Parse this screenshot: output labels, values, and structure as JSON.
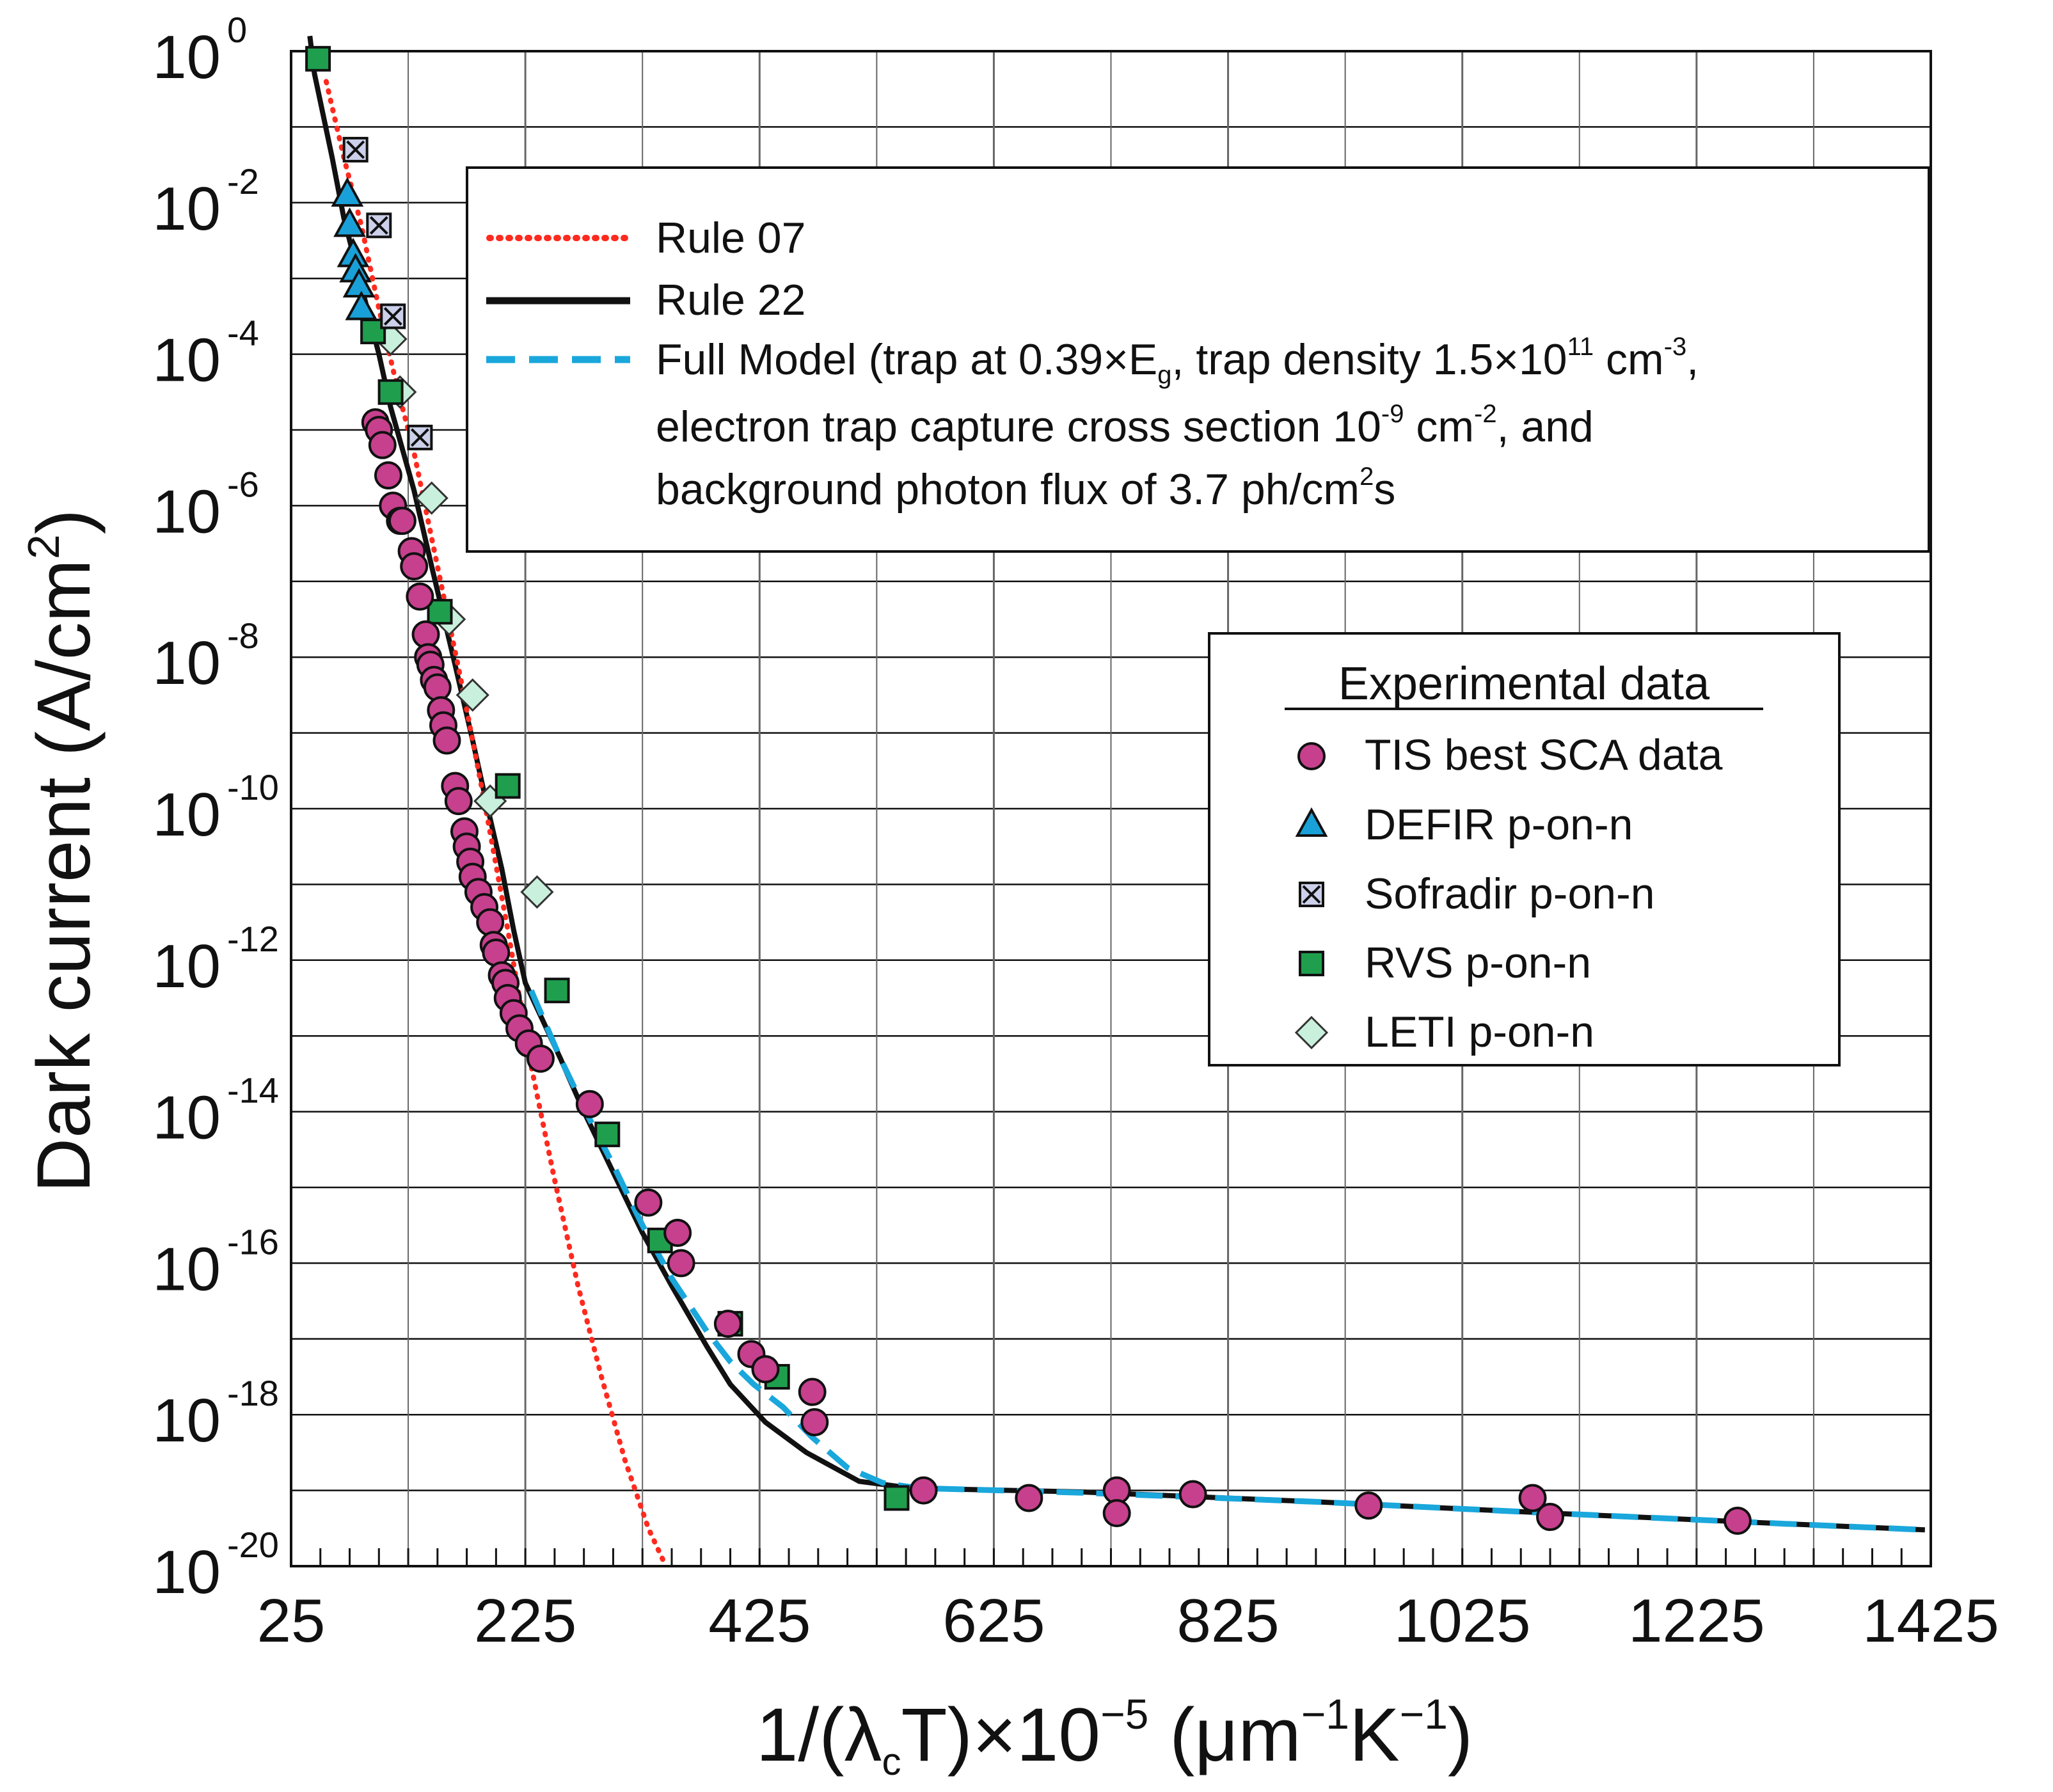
{
  "chart_data": {
    "type": "scatter",
    "xlabel": "1/(λcT)×10⁻⁵ (μm⁻¹K⁻¹)",
    "xlabel_parts": {
      "pre": "1/(λ",
      "sub": "c",
      "mid": "T)×10",
      "sup1": "−5",
      "post1": " (μm",
      "sup2": "−1",
      "post2": "K",
      "sup3": "−1",
      "end": ")"
    },
    "ylabel": "Dark current (A/cm²)",
    "ylabel_parts": {
      "pre": "Dark current (A/cm",
      "sup": "2",
      "post": ")"
    },
    "xlim": [
      25,
      1425
    ],
    "ylim_log10": [
      -20,
      0
    ],
    "x_ticks": [
      "25",
      "225",
      "425",
      "625",
      "825",
      "1025",
      "1225",
      "1425"
    ],
    "y_ticks": [
      {
        "base": "10",
        "exp": "0"
      },
      {
        "base": "10",
        "exp": "-2"
      },
      {
        "base": "10",
        "exp": "-4"
      },
      {
        "base": "10",
        "exp": "-6"
      },
      {
        "base": "10",
        "exp": "-8"
      },
      {
        "base": "10",
        "exp": "-10"
      },
      {
        "base": "10",
        "exp": "-12"
      },
      {
        "base": "10",
        "exp": "-14"
      },
      {
        "base": "10",
        "exp": "-16"
      },
      {
        "base": "10",
        "exp": "-18"
      },
      {
        "base": "10",
        "exp": "-20"
      }
    ],
    "grid": true,
    "model_legend": [
      {
        "label": "Rule 07",
        "style": "dotted",
        "color": "#ff2a1f"
      },
      {
        "label": "Rule 22",
        "style": "solid",
        "color": "#111111"
      },
      {
        "label": "Full Model (trap at 0.39×Eg, trap density 1.5×10¹¹ cm⁻³, electron trap capture cross section 10⁻⁹ cm⁻², and background photon flux of 3.7 ph/cm²s",
        "style": "dashed",
        "color": "#1aa7dc"
      }
    ],
    "model_legend_text": {
      "line3_a": "Full Model (trap at 0.39×E",
      "line3_sub": "g",
      "line3_b": ", trap density 1.5×10",
      "line3_sup1": "11",
      "line3_c": " cm",
      "line3_sup2": "-3",
      "line3_d": ",",
      "line4_a": "electron trap capture cross section 10",
      "line4_sup1": "-9",
      "line4_b": " cm",
      "line4_sup2": "-2",
      "line4_c": ", and",
      "line5_a": "background photon flux of 3.7 ph/cm",
      "line5_sup": "2",
      "line5_b": "s"
    },
    "experimental_legend_title": "Experimental data",
    "series": [
      {
        "name": "Rule 07",
        "kind": "line",
        "style": "dotted",
        "color": "#ff2a1f",
        "x": [
          55,
          70,
          85,
          100,
          115,
          130,
          150,
          170,
          190,
          210,
          230,
          250,
          270,
          290,
          310,
          330,
          345
        ],
        "log10_y": [
          -0.4,
          -1.4,
          -2.3,
          -3.4,
          -4.4,
          -5.3,
          -6.8,
          -8.3,
          -9.9,
          -11.6,
          -13.4,
          -14.9,
          -16.3,
          -17.5,
          -18.6,
          -19.5,
          -20.0
        ]
      },
      {
        "name": "Rule 22",
        "kind": "line",
        "style": "solid",
        "color": "#111111",
        "x": [
          41,
          45,
          60,
          70,
          80,
          100,
          110,
          130,
          145,
          165,
          180,
          190,
          205,
          215,
          225,
          255,
          275,
          300,
          325,
          350,
          380,
          400,
          430,
          465,
          510,
          545,
          580,
          700,
          900,
          1100,
          1300,
          1420
        ],
        "log10_y": [
          0.2,
          -0.3,
          -1.4,
          -2.2,
          -2.8,
          -4.0,
          -4.7,
          -5.8,
          -6.8,
          -8.1,
          -9.1,
          -9.8,
          -10.8,
          -11.6,
          -12.3,
          -13.3,
          -14.0,
          -14.8,
          -15.6,
          -16.3,
          -17.1,
          -17.6,
          -18.1,
          -18.5,
          -18.88,
          -18.95,
          -18.98,
          -19.02,
          -19.15,
          -19.3,
          -19.44,
          -19.52
        ]
      },
      {
        "name": "Full Model",
        "kind": "line",
        "style": "dashed",
        "color": "#1aa7dc",
        "x": [
          230,
          255,
          280,
          300,
          325,
          350,
          380,
          400,
          420,
          445,
          470,
          500,
          530,
          560,
          700,
          900,
          1100,
          1300,
          1420
        ],
        "log10_y": [
          -12.4,
          -13.3,
          -14.1,
          -14.7,
          -15.5,
          -16.2,
          -16.9,
          -17.3,
          -17.6,
          -17.9,
          -18.3,
          -18.7,
          -18.9,
          -18.97,
          -19.03,
          -19.15,
          -19.3,
          -19.44,
          -19.52
        ]
      },
      {
        "name": "TIS best SCA data",
        "kind": "scatter",
        "marker": "circle",
        "color": "#c6408d",
        "x": [
          97,
          100,
          103,
          108,
          112,
          118,
          120,
          128,
          130,
          135,
          140,
          142,
          144,
          147,
          150,
          153,
          155,
          158,
          165,
          168,
          173,
          175,
          178,
          180,
          185,
          190,
          195,
          198,
          200,
          205,
          208,
          210,
          215,
          220,
          228,
          238,
          280,
          330,
          355,
          358,
          398,
          418,
          430,
          470,
          472,
          565,
          655,
          730,
          730,
          795,
          945,
          1085,
          1100,
          1260
        ],
        "log10_y": [
          -4.9,
          -5.0,
          -5.2,
          -5.6,
          -6.0,
          -6.2,
          -6.2,
          -6.6,
          -6.8,
          -7.2,
          -7.7,
          -8.0,
          -8.1,
          -8.3,
          -8.4,
          -8.7,
          -8.9,
          -9.1,
          -9.7,
          -9.9,
          -10.3,
          -10.5,
          -10.7,
          -10.9,
          -11.1,
          -11.3,
          -11.5,
          -11.8,
          -11.9,
          -12.2,
          -12.3,
          -12.5,
          -12.7,
          -12.9,
          -13.1,
          -13.3,
          -13.9,
          -15.2,
          -15.6,
          -16.0,
          -16.8,
          -17.2,
          -17.4,
          -17.7,
          -18.1,
          -19.0,
          -19.1,
          -19.0,
          -19.3,
          -19.05,
          -19.2,
          -19.1,
          -19.35,
          -19.4
        ]
      },
      {
        "name": "DEFIR p-on-n",
        "kind": "scatter",
        "marker": "triangle",
        "color": "#1aa0d8",
        "x": [
          73,
          75,
          78,
          80,
          83,
          85
        ],
        "log10_y": [
          -1.9,
          -2.3,
          -2.7,
          -2.9,
          -3.1,
          -3.4
        ]
      },
      {
        "name": "Sofradir p-on-n",
        "kind": "scatter",
        "marker": "xsquare",
        "color": "#ccd0ea",
        "x": [
          80,
          100,
          112,
          135
        ],
        "log10_y": [
          -1.3,
          -2.3,
          -3.5,
          -5.1
        ]
      },
      {
        "name": "RVS p-on-n",
        "kind": "scatter",
        "marker": "square",
        "color": "#1f9f4e",
        "x": [
          48,
          95,
          110,
          152,
          210,
          252,
          295,
          340,
          400,
          440,
          542
        ],
        "log10_y": [
          -0.1,
          -3.7,
          -4.5,
          -7.4,
          -9.7,
          -12.4,
          -14.3,
          -15.7,
          -16.8,
          -17.5,
          -19.1
        ]
      },
      {
        "name": "LETI p-on-n",
        "kind": "scatter",
        "marker": "diamond",
        "color": "#c9f0dc",
        "x": [
          110,
          118,
          145,
          160,
          180,
          195,
          235
        ],
        "log10_y": [
          -3.8,
          -4.5,
          -5.9,
          -7.5,
          -8.5,
          -9.9,
          -11.1
        ]
      }
    ]
  }
}
